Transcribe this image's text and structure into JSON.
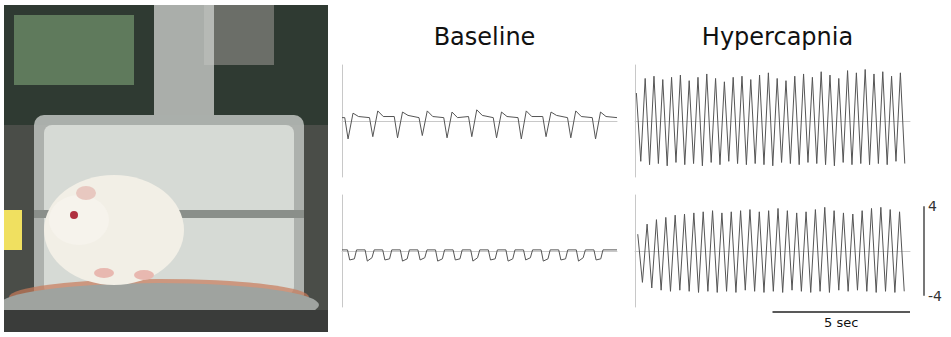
{
  "chart_data": [
    {
      "type": "line",
      "title": "Baseline",
      "color": "#555555",
      "tick_labels": false,
      "xlim": [
        0,
        10
      ],
      "ylim": [
        -5,
        5
      ],
      "x": [
        0,
        0.1,
        0.22,
        0.4,
        0.6,
        1.0,
        1.12,
        1.3,
        1.5,
        1.9,
        2.02,
        2.2,
        2.4,
        2.8,
        2.92,
        3.1,
        3.3,
        3.7,
        3.82,
        4.0,
        4.2,
        4.6,
        4.72,
        4.9,
        5.1,
        5.5,
        5.62,
        5.8,
        6.0,
        6.4,
        6.52,
        6.7,
        6.9,
        7.3,
        7.42,
        7.6,
        7.8,
        8.2,
        8.32,
        8.5,
        8.7,
        9.1,
        9.22,
        9.4,
        9.6,
        10.0
      ],
      "values": [
        0.3,
        0.3,
        -1.6,
        0.7,
        0.4,
        0.3,
        -1.4,
        0.9,
        0.4,
        0.4,
        -1.5,
        0.8,
        0.5,
        0.3,
        -1.3,
        0.9,
        0.4,
        0.3,
        -1.5,
        0.8,
        0.3,
        0.4,
        -1.4,
        1.0,
        0.5,
        0.3,
        -1.5,
        0.8,
        0.4,
        0.3,
        -1.6,
        0.9,
        0.4,
        0.4,
        -1.4,
        0.8,
        0.5,
        0.3,
        -1.5,
        0.9,
        0.4,
        0.3,
        -1.6,
        0.8,
        0.4,
        0.3
      ]
    },
    {
      "type": "line",
      "color": "#555555",
      "tick_labels": false,
      "xlim": [
        0,
        10
      ],
      "ylim": [
        -5,
        5
      ],
      "x": [
        0,
        0.2,
        0.28,
        0.45,
        0.53,
        0.84,
        0.92,
        1.09,
        1.17,
        1.48,
        1.56,
        1.73,
        1.81,
        2.12,
        2.2,
        2.37,
        2.45,
        2.76,
        2.84,
        3.01,
        3.09,
        3.4,
        3.48,
        3.65,
        3.73,
        4.04,
        4.12,
        4.29,
        4.37,
        4.68,
        4.76,
        4.93,
        5.01,
        5.32,
        5.4,
        5.57,
        5.65,
        5.96,
        6.04,
        6.21,
        6.29,
        6.6,
        6.68,
        6.85,
        6.93,
        7.24,
        7.32,
        7.49,
        7.57,
        7.88,
        7.96,
        8.13,
        8.21,
        8.52,
        8.6,
        8.77,
        8.85,
        9.16,
        9.24,
        9.41,
        9.49,
        10.0
      ],
      "values": [
        0.1,
        0.1,
        -0.8,
        -0.7,
        0.1,
        0.1,
        -0.9,
        -0.6,
        0.1,
        0.1,
        -0.8,
        -0.7,
        0.1,
        0.1,
        -0.9,
        -0.7,
        0.1,
        0.1,
        -0.8,
        -0.6,
        0.1,
        0.1,
        -0.9,
        -0.7,
        0.1,
        0.1,
        -0.8,
        -0.7,
        0.1,
        0.1,
        -0.9,
        -0.6,
        0.1,
        0.1,
        -0.8,
        -0.7,
        0.1,
        0.1,
        -0.9,
        -0.7,
        0.1,
        0.1,
        -0.8,
        -0.6,
        0.1,
        0.1,
        -0.9,
        -0.7,
        0.1,
        0.1,
        -0.8,
        -0.7,
        0.1,
        0.1,
        -0.9,
        -0.6,
        0.1,
        0.1,
        -0.8,
        -0.7,
        0.1,
        0.1
      ]
    },
    {
      "type": "line",
      "title": "Hypercapnia",
      "color": "#555555",
      "tick_labels": false,
      "xlim": [
        0,
        10
      ],
      "ylim": [
        -5,
        5
      ],
      "x": [
        0.05,
        0.21,
        0.37,
        0.53,
        0.69,
        0.85,
        1.01,
        1.17,
        1.33,
        1.49,
        1.65,
        1.81,
        1.97,
        2.13,
        2.29,
        2.45,
        2.61,
        2.77,
        2.93,
        3.09,
        3.25,
        3.41,
        3.57,
        3.73,
        3.89,
        4.05,
        4.21,
        4.37,
        4.53,
        4.69,
        4.85,
        5.01,
        5.17,
        5.33,
        5.49,
        5.65,
        5.81,
        5.97,
        6.13,
        6.29,
        6.45,
        6.61,
        6.77,
        6.93,
        7.09,
        7.25,
        7.41,
        7.57,
        7.73,
        7.89,
        8.05,
        8.21,
        8.37,
        8.53,
        8.69,
        8.85,
        9.01,
        9.17,
        9.33,
        9.49,
        9.65,
        9.81
      ],
      "values": [
        2.5,
        -3.6,
        3.8,
        -3.9,
        4.0,
        -3.8,
        3.7,
        -4.0,
        3.9,
        -3.7,
        4.1,
        -3.9,
        3.6,
        -3.8,
        3.9,
        -4.0,
        4.2,
        -3.7,
        3.8,
        -3.9,
        3.5,
        -3.6,
        3.9,
        -3.8,
        4.0,
        -3.9,
        3.7,
        -3.8,
        4.1,
        -3.9,
        4.3,
        -4.0,
        3.8,
        -3.7,
        3.6,
        -3.8,
        4.0,
        -3.9,
        4.2,
        -3.7,
        3.9,
        -3.8,
        4.4,
        -3.9,
        4.1,
        -4.0,
        3.8,
        -3.7,
        4.5,
        -3.9,
        4.3,
        -3.8,
        4.6,
        -3.9,
        4.2,
        -3.8,
        4.4,
        -3.9,
        4.0,
        -3.6,
        4.3,
        -3.8
      ]
    },
    {
      "type": "line",
      "color": "#555555",
      "tick_labels": false,
      "xlim": [
        0,
        10
      ],
      "ylim": [
        -5,
        5
      ],
      "x": [
        0.1,
        0.27,
        0.44,
        0.61,
        0.78,
        0.95,
        1.12,
        1.29,
        1.46,
        1.63,
        1.8,
        1.97,
        2.14,
        2.31,
        2.48,
        2.65,
        2.82,
        2.99,
        3.16,
        3.33,
        3.5,
        3.67,
        3.84,
        4.01,
        4.18,
        4.35,
        4.52,
        4.69,
        4.86,
        5.03,
        5.2,
        5.37,
        5.54,
        5.71,
        5.88,
        6.05,
        6.22,
        6.39,
        6.56,
        6.73,
        6.9,
        7.07,
        7.24,
        7.41,
        7.58,
        7.75,
        7.92,
        8.09,
        8.26,
        8.43,
        8.6,
        8.77,
        8.94,
        9.11,
        9.28,
        9.45,
        9.62,
        9.79
      ],
      "values": [
        1.5,
        -2.8,
        2.4,
        -3.3,
        2.8,
        -3.5,
        3.0,
        -3.6,
        3.2,
        -3.5,
        3.3,
        -3.6,
        3.4,
        -3.7,
        3.5,
        -3.6,
        3.6,
        -3.7,
        3.4,
        -3.6,
        3.5,
        -3.7,
        3.6,
        -3.5,
        3.7,
        -3.6,
        3.5,
        -3.7,
        3.6,
        -3.6,
        3.8,
        -3.7,
        3.6,
        -3.5,
        3.4,
        -3.6,
        3.5,
        -3.7,
        3.7,
        -3.6,
        3.9,
        -3.7,
        3.6,
        -3.5,
        3.4,
        -3.6,
        3.3,
        -3.5,
        3.6,
        -3.6,
        3.8,
        -3.7,
        3.9,
        -3.6,
        3.7,
        -3.7,
        3.5,
        -3.6
      ],
      "scale_bars": {
        "y": {
          "values": [
            -4,
            4
          ],
          "labels": [
            "-4",
            "4"
          ]
        },
        "x": {
          "value": 5,
          "label": "5 sec"
        }
      }
    }
  ]
}
